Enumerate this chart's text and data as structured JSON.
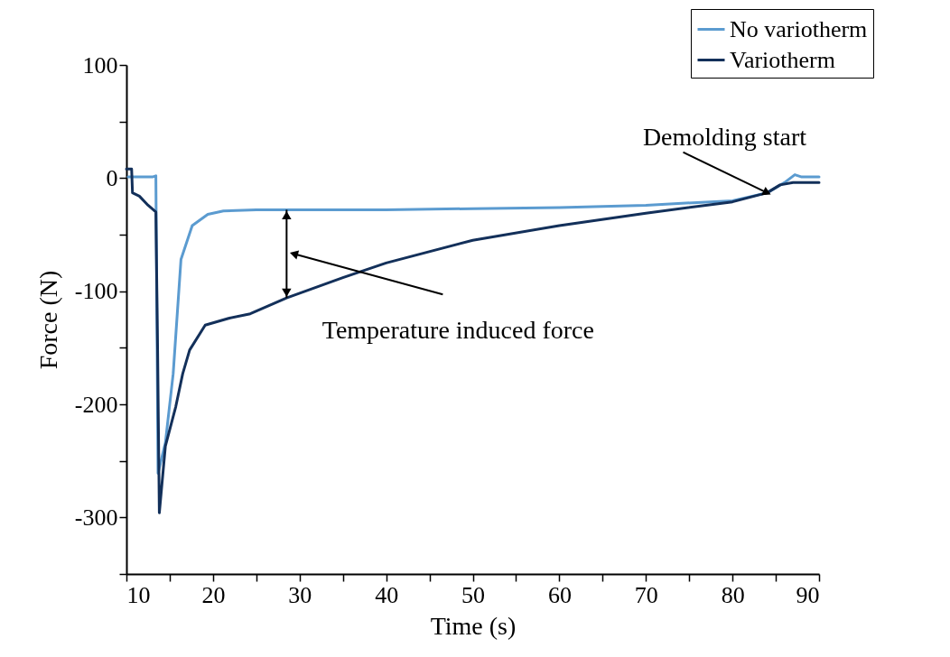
{
  "chart_data": {
    "type": "line",
    "xlabel": "Time (s)",
    "ylabel": "Force (N)",
    "xlim": [
      10,
      90
    ],
    "xticks": [
      10,
      {
        "value": 15,
        "label": null
      },
      20,
      {
        "value": 25,
        "label": null
      },
      30,
      {
        "value": 35,
        "label": null
      },
      40,
      {
        "value": 45,
        "label": null
      },
      50,
      {
        "value": 55,
        "label": null
      },
      60,
      {
        "value": 65,
        "label": null
      },
      70,
      {
        "value": 75,
        "label": null
      },
      80,
      {
        "value": 85,
        "label": null
      },
      90
    ],
    "ylim": [
      -350,
      100
    ],
    "yticks": [
      {
        "value": -350,
        "label": null
      },
      -300,
      {
        "value": -250,
        "label": null
      },
      -200,
      {
        "value": -150,
        "label": null
      },
      -100,
      {
        "value": -50,
        "label": null
      },
      0,
      {
        "value": 50,
        "label": null
      },
      100
    ],
    "grid": false,
    "legend": "top right",
    "marker": "none",
    "line_style": "solid",
    "series": [
      {
        "name": "No variotherm",
        "color": "#5b9bd0",
        "x": [
          10.2,
          11,
          12,
          13,
          13.4,
          13.65,
          14.5,
          15.4,
          16.3,
          17.6,
          19.4,
          21.2,
          25,
          30,
          40,
          50,
          60,
          70,
          80,
          84,
          86,
          87.2,
          88,
          90
        ],
        "values": [
          1,
          1,
          1,
          1,
          2,
          -261,
          -234,
          -173,
          -72,
          -42,
          -32,
          -29,
          -28,
          -28,
          -28,
          -27,
          -26,
          -24,
          -20,
          -13,
          -4,
          3,
          1,
          1
        ]
      },
      {
        "name": "Variotherm",
        "color": "#13305a",
        "x": [
          10,
          10.6,
          10.7,
          11.5,
          12.5,
          13.4,
          13.6,
          13.8,
          14.5,
          15.7,
          16.5,
          17.3,
          19.1,
          21.8,
          24.3,
          28.5,
          35,
          40,
          50,
          60,
          70,
          80,
          84,
          85.5,
          87,
          90
        ],
        "values": [
          8,
          8,
          -13,
          -16,
          -24,
          -30,
          -150,
          -296,
          -237,
          -202,
          -173,
          -152,
          -130,
          -124,
          -120,
          -106,
          -88,
          -75,
          -55,
          -42,
          -31,
          -21,
          -13,
          -6,
          -4,
          -4
        ]
      }
    ],
    "annotations": [
      {
        "text": "Temperature induced force",
        "x": 28.5,
        "y": -106
      },
      {
        "text": "Demolding start",
        "x": 84,
        "y": -13
      }
    ]
  }
}
